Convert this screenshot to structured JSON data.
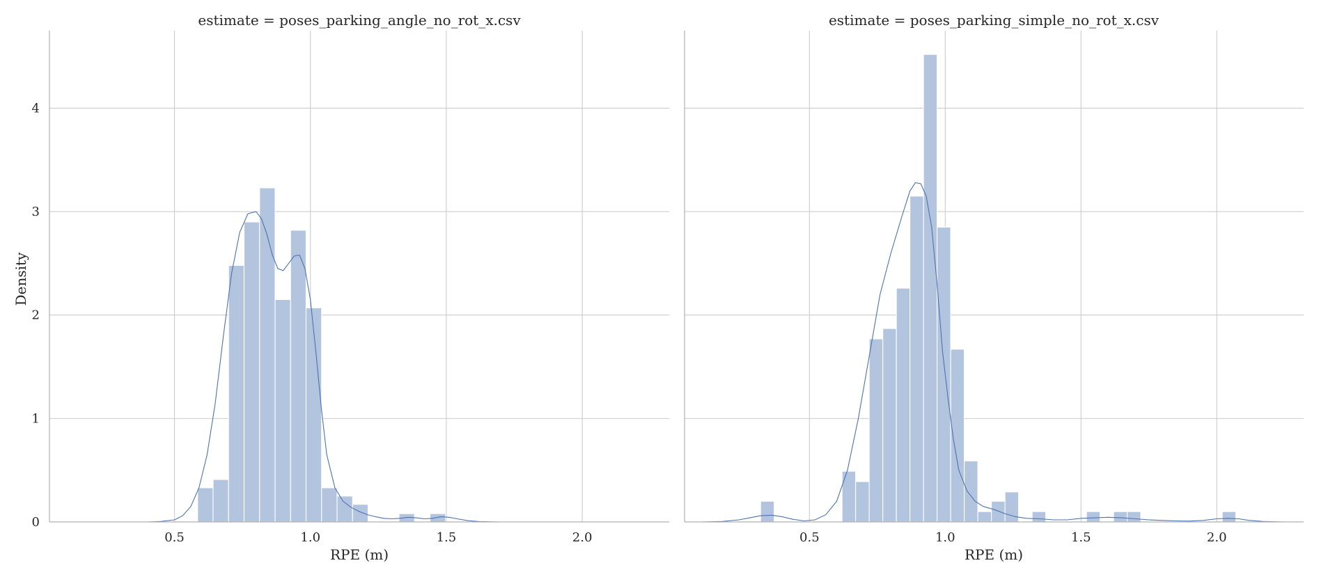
{
  "chart_data": [
    {
      "type": "histogram",
      "title": "estimate = poses_parking_angle_no_rot_x.csv",
      "xlabel": "RPE (m)",
      "ylabel": "Density",
      "xlim": [
        0.04,
        2.32
      ],
      "ylim": [
        0,
        4.75
      ],
      "xticks": [
        "0.5",
        "1.0",
        "1.5",
        "2.0"
      ],
      "yticks": [
        "0",
        "1",
        "2",
        "3",
        "4"
      ],
      "grid": true,
      "colors": {
        "bars": "#b3c4df",
        "kde": "#4c72b0"
      },
      "bins": [
        {
          "x0": 0.585,
          "x1": 0.642,
          "density": 0.33
        },
        {
          "x0": 0.642,
          "x1": 0.699,
          "density": 0.41
        },
        {
          "x0": 0.699,
          "x1": 0.756,
          "density": 2.48
        },
        {
          "x0": 0.756,
          "x1": 0.813,
          "density": 2.9
        },
        {
          "x0": 0.813,
          "x1": 0.87,
          "density": 3.23
        },
        {
          "x0": 0.87,
          "x1": 0.927,
          "density": 2.15
        },
        {
          "x0": 0.927,
          "x1": 0.984,
          "density": 2.82
        },
        {
          "x0": 0.984,
          "x1": 1.041,
          "density": 2.07
        },
        {
          "x0": 1.041,
          "x1": 1.098,
          "density": 0.33
        },
        {
          "x0": 1.098,
          "x1": 1.155,
          "density": 0.25
        },
        {
          "x0": 1.155,
          "x1": 1.212,
          "density": 0.17
        },
        {
          "x0": 1.212,
          "x1": 1.269,
          "density": 0.0
        },
        {
          "x0": 1.269,
          "x1": 1.326,
          "density": 0.0
        },
        {
          "x0": 1.326,
          "x1": 1.383,
          "density": 0.08
        },
        {
          "x0": 1.383,
          "x1": 1.44,
          "density": 0.0
        },
        {
          "x0": 1.44,
          "x1": 1.497,
          "density": 0.08
        }
      ],
      "kde": {
        "x": [
          0.4,
          0.45,
          0.5,
          0.53,
          0.56,
          0.59,
          0.62,
          0.65,
          0.68,
          0.71,
          0.74,
          0.77,
          0.8,
          0.82,
          0.84,
          0.86,
          0.88,
          0.9,
          0.92,
          0.94,
          0.96,
          0.98,
          1.0,
          1.02,
          1.04,
          1.06,
          1.09,
          1.12,
          1.15,
          1.18,
          1.21,
          1.24,
          1.27,
          1.3,
          1.33,
          1.36,
          1.39,
          1.42,
          1.45,
          1.48,
          1.51,
          1.54,
          1.58,
          1.62,
          1.7,
          1.8
        ],
        "y": [
          0.0,
          0.005,
          0.02,
          0.06,
          0.15,
          0.33,
          0.65,
          1.15,
          1.8,
          2.4,
          2.8,
          2.98,
          3.0,
          2.93,
          2.78,
          2.58,
          2.45,
          2.43,
          2.5,
          2.57,
          2.58,
          2.45,
          2.15,
          1.65,
          1.1,
          0.65,
          0.33,
          0.2,
          0.14,
          0.1,
          0.07,
          0.05,
          0.035,
          0.03,
          0.035,
          0.045,
          0.04,
          0.03,
          0.035,
          0.05,
          0.045,
          0.03,
          0.012,
          0.004,
          0.0,
          0.0
        ]
      }
    },
    {
      "type": "histogram",
      "title": "estimate = poses_parking_simple_no_rot_x.csv",
      "xlabel": "RPE (m)",
      "ylabel": "",
      "xlim": [
        0.04,
        2.32
      ],
      "ylim": [
        0,
        4.75
      ],
      "xticks": [
        "0.5",
        "1.0",
        "1.5",
        "2.0"
      ],
      "yticks": [],
      "grid": true,
      "colors": {
        "bars": "#b3c4df",
        "kde": "#4c72b0"
      },
      "bins": [
        {
          "x0": 0.32,
          "x1": 0.37,
          "density": 0.2
        },
        {
          "x0": 0.37,
          "x1": 0.42,
          "density": 0.0
        },
        {
          "x0": 0.42,
          "x1": 0.47,
          "density": 0.0
        },
        {
          "x0": 0.47,
          "x1": 0.52,
          "density": 0.0
        },
        {
          "x0": 0.52,
          "x1": 0.57,
          "density": 0.0
        },
        {
          "x0": 0.57,
          "x1": 0.62,
          "density": 0.0
        },
        {
          "x0": 0.62,
          "x1": 0.67,
          "density": 0.49
        },
        {
          "x0": 0.67,
          "x1": 0.72,
          "density": 0.39
        },
        {
          "x0": 0.72,
          "x1": 0.77,
          "density": 1.77
        },
        {
          "x0": 0.77,
          "x1": 0.82,
          "density": 1.87
        },
        {
          "x0": 0.82,
          "x1": 0.87,
          "density": 2.26
        },
        {
          "x0": 0.87,
          "x1": 0.92,
          "density": 3.15
        },
        {
          "x0": 0.92,
          "x1": 0.97,
          "density": 4.52
        },
        {
          "x0": 0.97,
          "x1": 1.02,
          "density": 2.85
        },
        {
          "x0": 1.02,
          "x1": 1.07,
          "density": 1.67
        },
        {
          "x0": 1.07,
          "x1": 1.12,
          "density": 0.59
        },
        {
          "x0": 1.12,
          "x1": 1.17,
          "density": 0.1
        },
        {
          "x0": 1.17,
          "x1": 1.22,
          "density": 0.2
        },
        {
          "x0": 1.22,
          "x1": 1.27,
          "density": 0.29
        },
        {
          "x0": 1.27,
          "x1": 1.32,
          "density": 0.0
        },
        {
          "x0": 1.32,
          "x1": 1.37,
          "density": 0.1
        },
        {
          "x0": 1.37,
          "x1": 1.42,
          "density": 0.0
        },
        {
          "x0": 1.42,
          "x1": 1.47,
          "density": 0.0
        },
        {
          "x0": 1.47,
          "x1": 1.52,
          "density": 0.0
        },
        {
          "x0": 1.52,
          "x1": 1.57,
          "density": 0.1
        },
        {
          "x0": 1.57,
          "x1": 1.62,
          "density": 0.0
        },
        {
          "x0": 1.62,
          "x1": 1.67,
          "density": 0.1
        },
        {
          "x0": 1.67,
          "x1": 1.72,
          "density": 0.1
        },
        {
          "x0": 1.72,
          "x1": 1.77,
          "density": 0.0
        },
        {
          "x0": 1.77,
          "x1": 1.82,
          "density": 0.0
        },
        {
          "x0": 1.82,
          "x1": 1.87,
          "density": 0.0
        },
        {
          "x0": 1.87,
          "x1": 1.92,
          "density": 0.0
        },
        {
          "x0": 1.92,
          "x1": 1.97,
          "density": 0.0
        },
        {
          "x0": 1.97,
          "x1": 2.02,
          "density": 0.0
        },
        {
          "x0": 2.02,
          "x1": 2.07,
          "density": 0.1
        }
      ],
      "kde": {
        "x": [
          0.1,
          0.18,
          0.24,
          0.28,
          0.32,
          0.36,
          0.4,
          0.44,
          0.48,
          0.52,
          0.56,
          0.6,
          0.64,
          0.68,
          0.72,
          0.76,
          0.8,
          0.84,
          0.87,
          0.89,
          0.91,
          0.93,
          0.95,
          0.97,
          0.99,
          1.01,
          1.03,
          1.05,
          1.08,
          1.11,
          1.14,
          1.18,
          1.22,
          1.26,
          1.3,
          1.35,
          1.4,
          1.45,
          1.5,
          1.55,
          1.6,
          1.65,
          1.7,
          1.75,
          1.8,
          1.85,
          1.9,
          1.95,
          2.0,
          2.04,
          2.08,
          2.12,
          2.17,
          2.25
        ],
        "y": [
          0.0,
          0.005,
          0.02,
          0.04,
          0.06,
          0.065,
          0.05,
          0.025,
          0.01,
          0.02,
          0.07,
          0.2,
          0.5,
          1.0,
          1.6,
          2.2,
          2.6,
          2.95,
          3.2,
          3.28,
          3.27,
          3.15,
          2.85,
          2.3,
          1.65,
          1.2,
          0.8,
          0.5,
          0.3,
          0.2,
          0.15,
          0.12,
          0.08,
          0.05,
          0.035,
          0.03,
          0.02,
          0.02,
          0.035,
          0.04,
          0.045,
          0.04,
          0.03,
          0.02,
          0.015,
          0.01,
          0.008,
          0.015,
          0.03,
          0.035,
          0.03,
          0.015,
          0.005,
          0.0
        ]
      }
    }
  ]
}
